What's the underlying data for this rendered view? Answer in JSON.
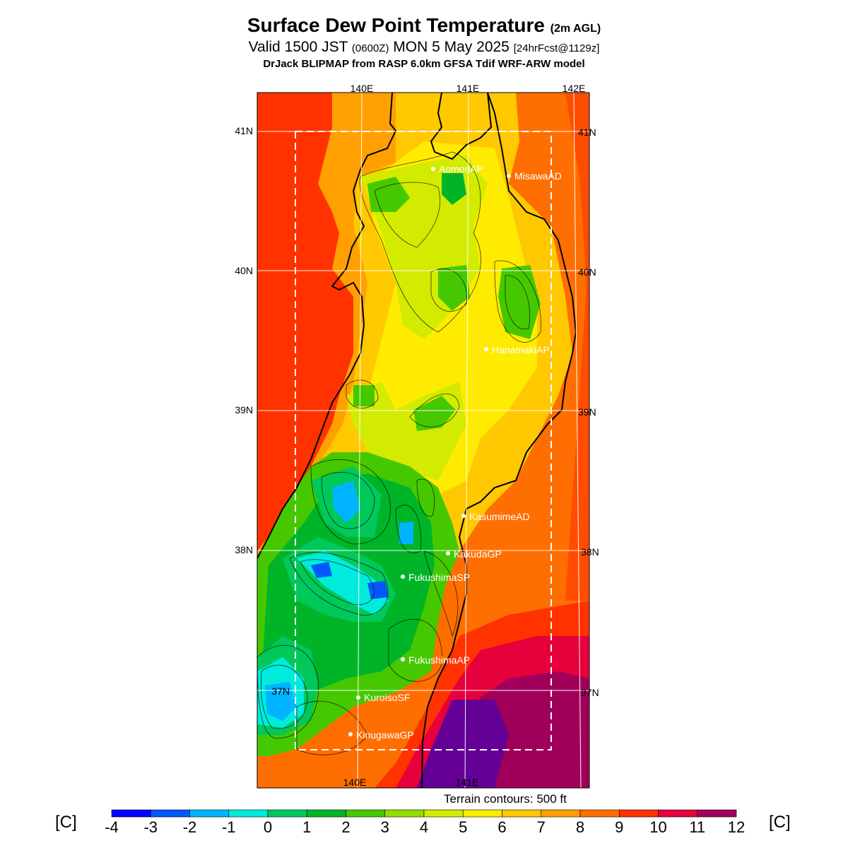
{
  "header": {
    "title": "Surface Dew Point Temperature",
    "title_suffix": "(2m AGL)",
    "valid_prefix": "Valid 1500 JST",
    "valid_zulu": "(0600Z)",
    "valid_date": "MON 5 May 2025",
    "forecast": "[24hrFcst@1129z]",
    "model_line": "DrJack BLIPMAP from RASP 6.0km GFSA Tdif WRF-ARW model"
  },
  "map": {
    "lon_labels_top": [
      "140E",
      "141E",
      "142E"
    ],
    "lon_labels_bottom": [
      "140E",
      "141E"
    ],
    "lat_labels_left": [
      "41N",
      "40N",
      "39N",
      "38N",
      "37N"
    ],
    "lat_labels_right": [
      "41N",
      "40N",
      "39N",
      "38N",
      "37N"
    ],
    "stations": [
      {
        "name": "AomoriAP"
      },
      {
        "name": "MisawaAD"
      },
      {
        "name": "HanamakiAP"
      },
      {
        "name": "KasumimeAD"
      },
      {
        "name": "KakudaGP"
      },
      {
        "name": "FukushimaSP"
      },
      {
        "name": "FukushimaAP"
      },
      {
        "name": "KuroisoSF"
      },
      {
        "name": "KinugawaGP"
      }
    ],
    "terrain_note": "Terrain contours: 500 ft"
  },
  "colorbar": {
    "unit_left": "[C]",
    "unit_right": "[C]",
    "ticks": [
      "-4",
      "-3",
      "-2",
      "-1",
      "0",
      "1",
      "2",
      "3",
      "4",
      "5",
      "6",
      "7",
      "8",
      "9",
      "10",
      "11",
      "12"
    ],
    "colors": [
      "#0000ff",
      "#0059ff",
      "#00b4ff",
      "#00ebdb",
      "#00c85a",
      "#00b428",
      "#46c800",
      "#96dc00",
      "#d2eb00",
      "#ffeb00",
      "#ffc800",
      "#ffa000",
      "#ff6e00",
      "#ff3200",
      "#e6003c",
      "#a0005a",
      "#640096"
    ]
  }
}
